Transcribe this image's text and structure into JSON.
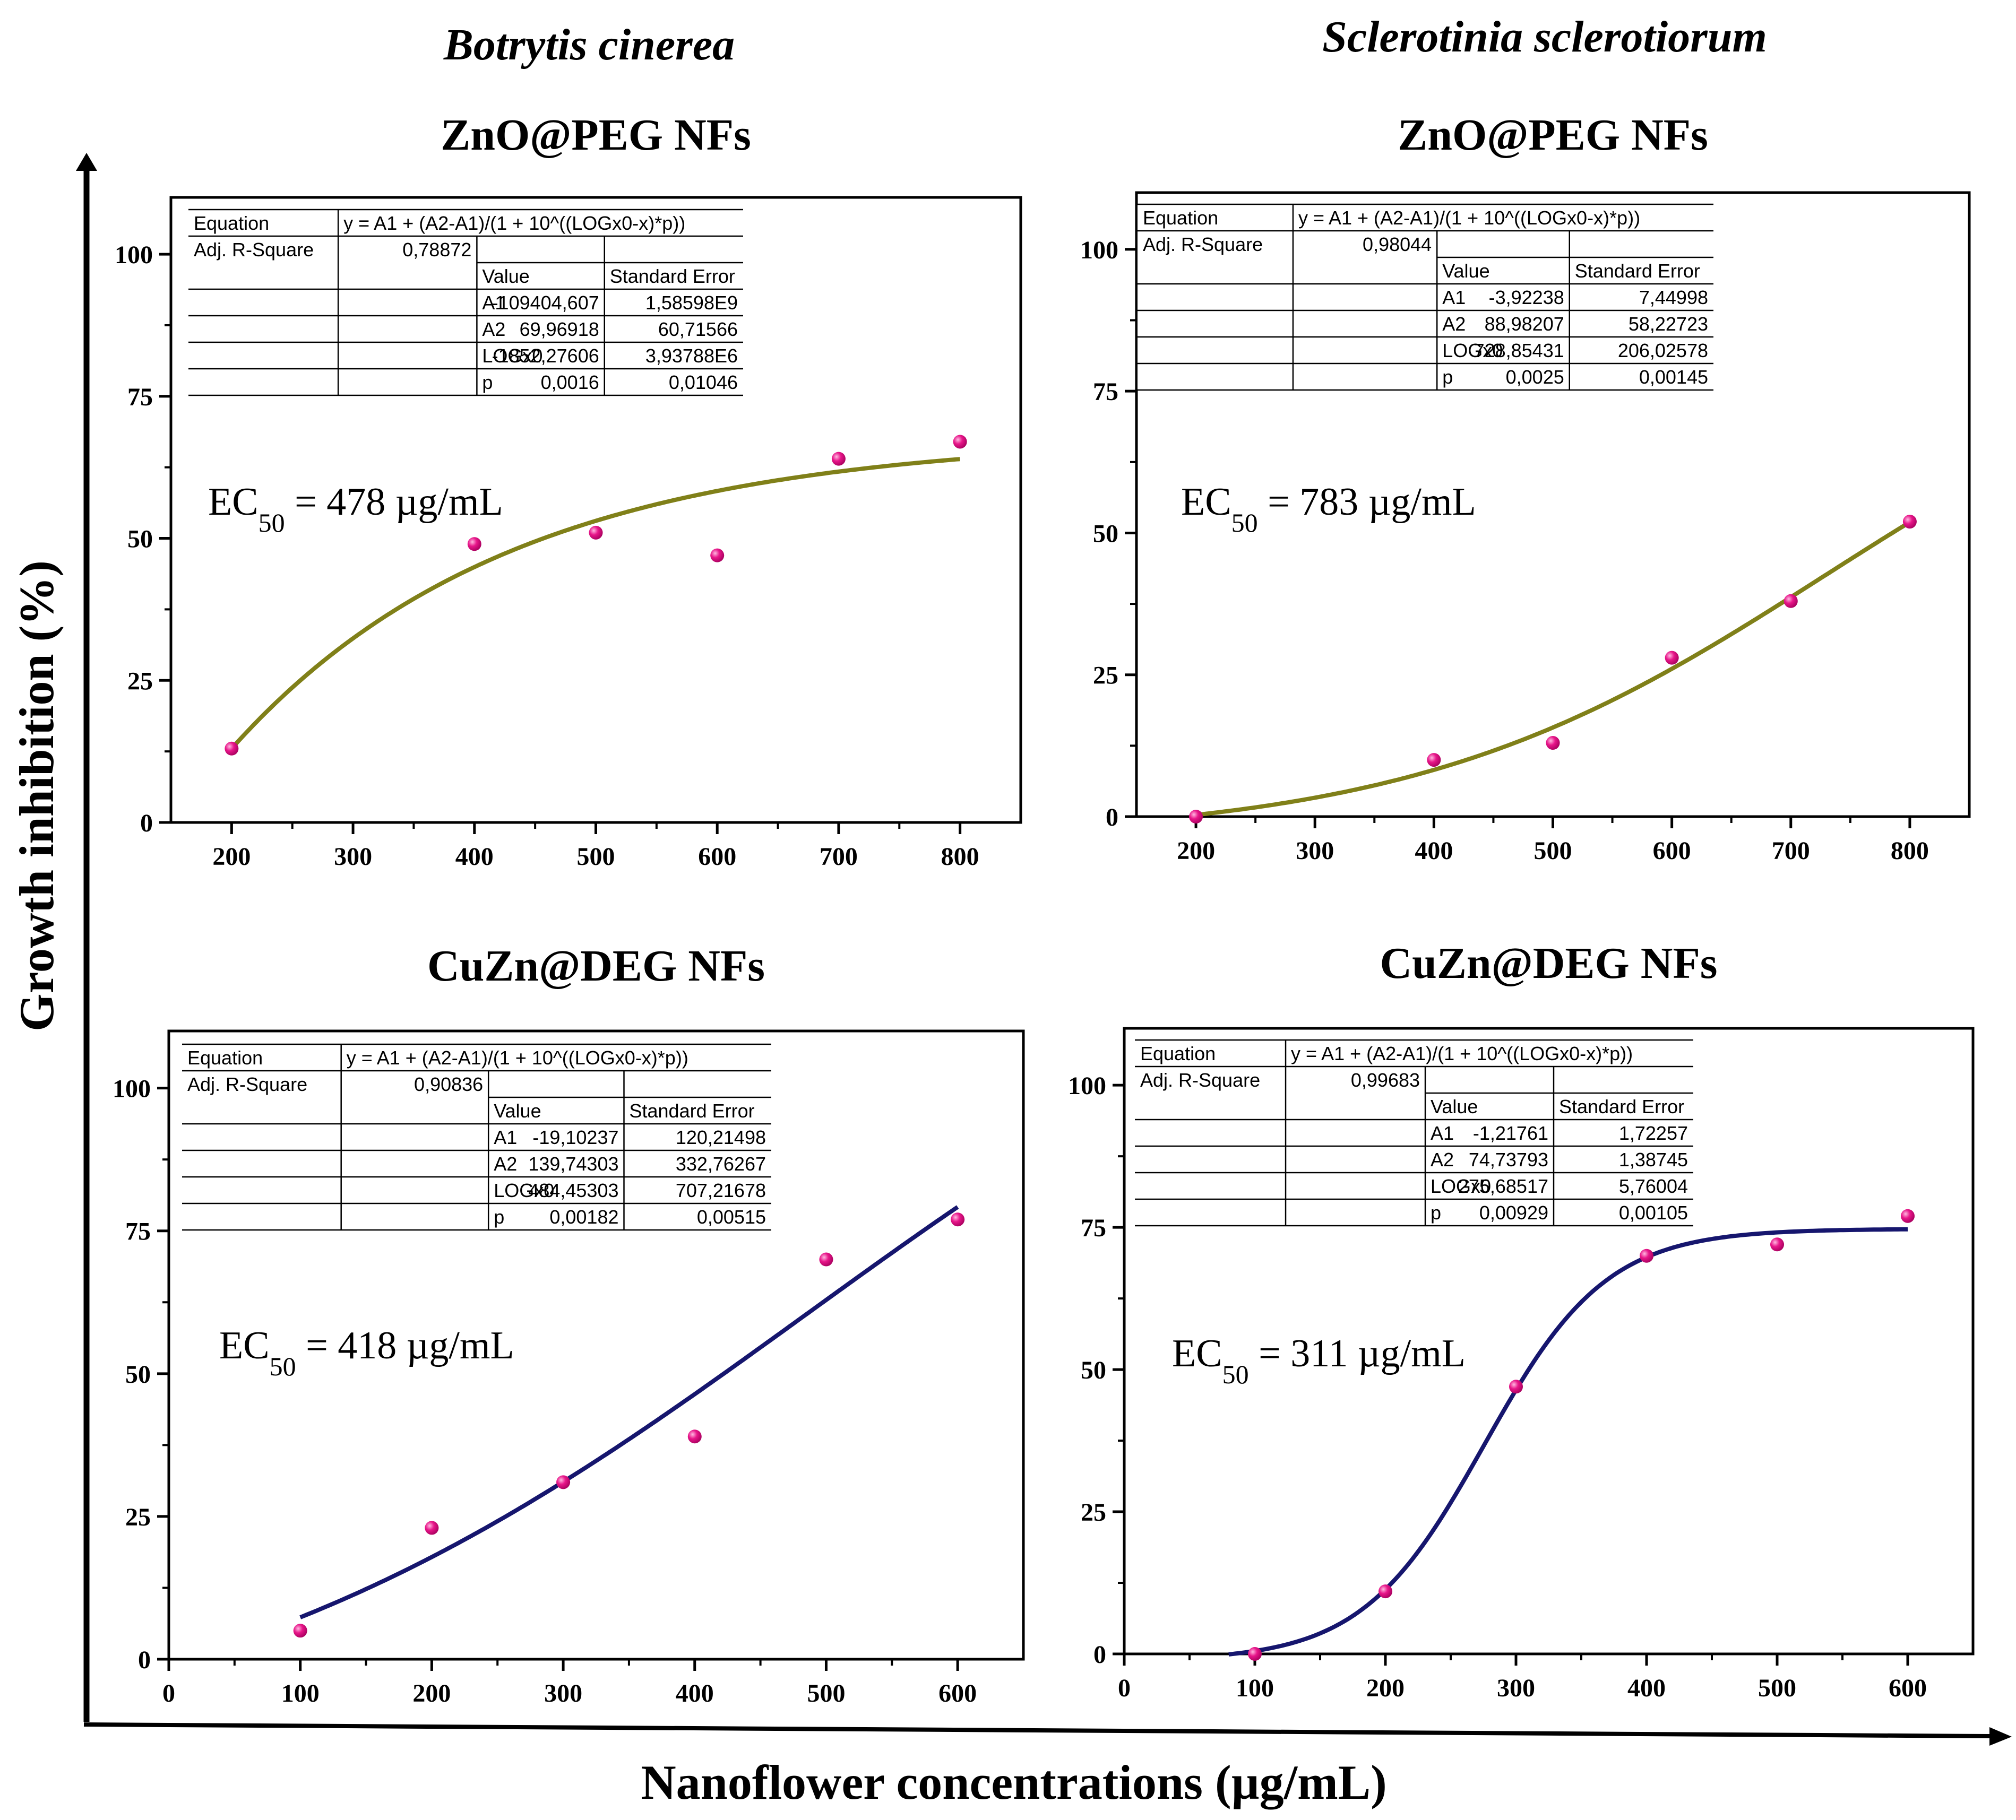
{
  "figure": {
    "column_titles": [
      "Botrytis cinerea",
      "Sclerotinia sclerotiorum"
    ],
    "shared_ylabel": "Growth inhibition (%)",
    "shared_xlabel": "Nanoflower concentrations (µg/mL)",
    "colors": {
      "points": "#e8168a",
      "fit_zno": "#808019",
      "fit_cuzn": "#16166e",
      "axis": "#000000"
    }
  },
  "chart_data": [
    {
      "type": "scatter",
      "title": "ZnO@PEG NFs",
      "organism": "Botrytis cinerea",
      "x": [
        200,
        400,
        500,
        600,
        700,
        800
      ],
      "y": [
        13,
        49,
        51,
        47,
        64,
        67
      ],
      "xlim": [
        150,
        850
      ],
      "ylim": [
        0,
        110
      ],
      "xticks": [
        "200",
        "300",
        "400",
        "500",
        "600",
        "700",
        "800"
      ],
      "yticks": [
        "0",
        "25",
        "50",
        "75",
        "100"
      ],
      "fit": {
        "A1": -109404.607,
        "A2": 69.96918,
        "LOGx0": -1852.27606,
        "p": 0.0016,
        "x_range": [
          200,
          800
        ]
      },
      "ec50": {
        "prefix": "EC",
        "sub": "50",
        "text": " = 478 µg/mL"
      },
      "table": {
        "equation_label": "Equation",
        "equation": "y = A1 + (A2-A1)/(1 + 10^((LOGx0-x)*p))",
        "rsq_label": "Adj. R-Square",
        "rsq": "0,78872",
        "col_value": "Value",
        "col_se": "Standard Error",
        "rows": [
          {
            "name": "A1",
            "value": "-109404,607",
            "se": "1,58598E9"
          },
          {
            "name": "A2",
            "value": "69,96918",
            "se": "60,71566"
          },
          {
            "name": "LOGx0",
            "value": "-1852,27606",
            "se": "3,93788E6"
          },
          {
            "name": "p",
            "value": "0,0016",
            "se": "0,01046"
          }
        ]
      }
    },
    {
      "type": "scatter",
      "title": "ZnO@PEG NFs",
      "organism": "Sclerotinia sclerotiorum",
      "x": [
        200,
        400,
        500,
        600,
        700,
        800
      ],
      "y": [
        0,
        10,
        13,
        28,
        38,
        52
      ],
      "xlim": [
        150,
        850
      ],
      "ylim": [
        0,
        110
      ],
      "xticks": [
        "200",
        "300",
        "400",
        "500",
        "600",
        "700",
        "800"
      ],
      "yticks": [
        "0",
        "25",
        "50",
        "75",
        "100"
      ],
      "fit": {
        "A1": -3.92238,
        "A2": 88.98207,
        "LOGx0": 728.85431,
        "p": 0.0025,
        "x_range": [
          200,
          800
        ]
      },
      "ec50": {
        "prefix": "EC",
        "sub": "50",
        "text": " = 783 µg/mL"
      },
      "table": {
        "equation_label": "Equation",
        "equation": "y = A1 + (A2-A1)/(1 + 10^((LOGx0-x)*p))",
        "rsq_label": "Adj. R-Square",
        "rsq": "0,98044",
        "col_value": "Value",
        "col_se": "Standard Error",
        "rows": [
          {
            "name": "A1",
            "value": "-3,92238",
            "se": "7,44998"
          },
          {
            "name": "A2",
            "value": "88,98207",
            "se": "58,22723"
          },
          {
            "name": "LOGx0",
            "value": "728,85431",
            "se": "206,02578"
          },
          {
            "name": "p",
            "value": "0,0025",
            "se": "0,00145"
          }
        ]
      }
    },
    {
      "type": "scatter",
      "title": "CuZn@DEG NFs",
      "organism": "Botrytis cinerea",
      "x": [
        100,
        200,
        300,
        400,
        500,
        600
      ],
      "y": [
        5,
        23,
        31,
        39,
        70,
        77
      ],
      "xlim": [
        0,
        650
      ],
      "ylim": [
        0,
        110
      ],
      "xticks": [
        "0",
        "100",
        "200",
        "300",
        "400",
        "500",
        "600"
      ],
      "yticks": [
        "0",
        "25",
        "50",
        "75",
        "100"
      ],
      "fit": {
        "A1": -19.10237,
        "A2": 139.74303,
        "LOGx0": 484.45303,
        "p": 0.00182,
        "x_range": [
          100,
          600
        ]
      },
      "ec50": {
        "prefix": "EC",
        "sub": "50",
        "text": " = 418 µg/mL"
      },
      "table": {
        "equation_label": "Equation",
        "equation": "y = A1 + (A2-A1)/(1 + 10^((LOGx0-x)*p))",
        "rsq_label": "Adj. R-Square",
        "rsq": "0,90836",
        "col_value": "Value",
        "col_se": "Standard Error",
        "rows": [
          {
            "name": "A1",
            "value": "-19,10237",
            "se": "120,21498"
          },
          {
            "name": "A2",
            "value": "139,74303",
            "se": "332,76267"
          },
          {
            "name": "LOGx0",
            "value": "484,45303",
            "se": "707,21678"
          },
          {
            "name": "p",
            "value": "0,00182",
            "se": "0,00515"
          }
        ]
      }
    },
    {
      "type": "scatter",
      "title": "CuZn@DEG NFs",
      "organism": "Sclerotinia sclerotiorum",
      "x": [
        100,
        200,
        300,
        400,
        500,
        600
      ],
      "y": [
        0,
        11,
        47,
        70,
        72,
        77
      ],
      "xlim": [
        0,
        650
      ],
      "ylim": [
        0,
        110
      ],
      "xticks": [
        "0",
        "100",
        "200",
        "300",
        "400",
        "500",
        "600"
      ],
      "yticks": [
        "0",
        "25",
        "50",
        "75",
        "100"
      ],
      "fit": {
        "A1": -1.21761,
        "A2": 74.73793,
        "LOGx0": 275.68517,
        "p": 0.00929,
        "x_range": [
          80,
          600
        ]
      },
      "ec50": {
        "prefix": "EC",
        "sub": "50",
        "text": " = 311 µg/mL"
      },
      "table": {
        "equation_label": "Equation",
        "equation": "y = A1 + (A2-A1)/(1 + 10^((LOGx0-x)*p))",
        "rsq_label": "Adj. R-Square",
        "rsq": "0,99683",
        "col_value": "Value",
        "col_se": "Standard Error",
        "rows": [
          {
            "name": "A1",
            "value": "-1,21761",
            "se": "1,72257"
          },
          {
            "name": "A2",
            "value": "74,73793",
            "se": "1,38745"
          },
          {
            "name": "LOGx0",
            "value": "275,68517",
            "se": "5,76004"
          },
          {
            "name": "p",
            "value": "0,00929",
            "se": "0,00105"
          }
        ]
      }
    }
  ]
}
